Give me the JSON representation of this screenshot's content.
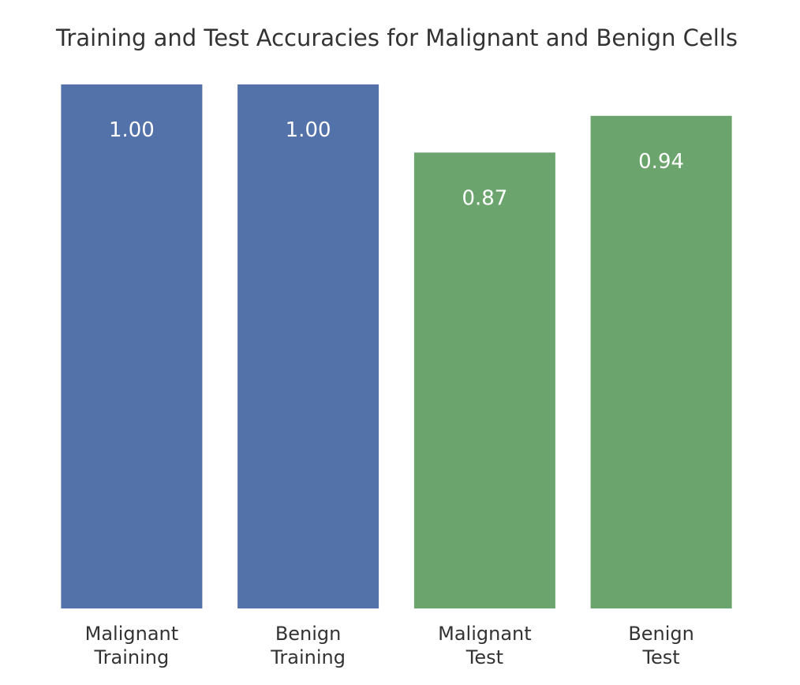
{
  "chart_data": {
    "type": "bar",
    "title": "Training and Test Accuracies for Malignant and Benign Cells",
    "categories": [
      [
        "Malignant",
        "Training"
      ],
      [
        "Benign",
        "Training"
      ],
      [
        "Malignant",
        "Test"
      ],
      [
        "Benign",
        "Test"
      ]
    ],
    "values": [
      1.0,
      1.0,
      0.87,
      0.94
    ],
    "value_labels": [
      "1.00",
      "1.00",
      "0.87",
      "0.94"
    ],
    "bar_colors": [
      "#5372a9",
      "#5372a9",
      "#6ba56d",
      "#6ba56d"
    ],
    "xlabel": "",
    "ylabel": "",
    "ylim": [
      0,
      1.0
    ],
    "grid": false,
    "legend": "none"
  }
}
